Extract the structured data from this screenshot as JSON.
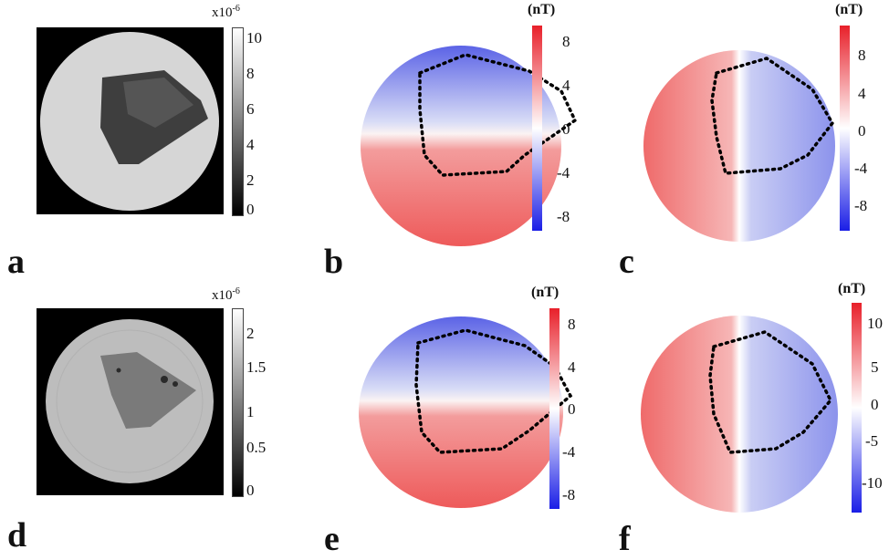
{
  "panels": {
    "a": {
      "letter": "a",
      "type": "grayscale",
      "colorbar_exponent": "x10",
      "colorbar_exponent_power": "-6",
      "colorbar_ticks": [
        "10",
        "8",
        "6",
        "4",
        "2",
        "0"
      ],
      "colormap": "gray"
    },
    "b": {
      "letter": "b",
      "type": "field-map",
      "split": "horizontal",
      "colorbar_unit": "(nT)",
      "colorbar_ticks": [
        "8",
        "4",
        "0",
        "-4",
        "-8"
      ],
      "colormap": "blue-white-red",
      "roi_outline": "dotted"
    },
    "c": {
      "letter": "c",
      "type": "field-map",
      "split": "vertical",
      "colorbar_unit": "(nT)",
      "colorbar_ticks": [
        "8",
        "4",
        "0",
        "-4",
        "-8"
      ],
      "colormap": "blue-white-red",
      "roi_outline": "dotted"
    },
    "d": {
      "letter": "d",
      "type": "grayscale",
      "colorbar_exponent": "x10",
      "colorbar_exponent_power": "-6",
      "colorbar_ticks": [
        "2",
        "1.5",
        "1",
        "0.5",
        "0"
      ],
      "colormap": "gray"
    },
    "e": {
      "letter": "e",
      "type": "field-map",
      "split": "horizontal",
      "colorbar_unit": "(nT)",
      "colorbar_ticks": [
        "8",
        "4",
        "0",
        "-4",
        "-8"
      ],
      "colormap": "blue-white-red",
      "roi_outline": "dotted"
    },
    "f": {
      "letter": "f",
      "type": "field-map",
      "split": "vertical",
      "colorbar_unit": "(nT)",
      "colorbar_ticks": [
        "10",
        "5",
        "0",
        "-5",
        "-10"
      ],
      "colormap": "blue-white-red",
      "roi_outline": "dotted"
    }
  },
  "colors": {
    "red": "#e8333a",
    "blue": "#2f3fe0",
    "white": "#ffffff",
    "black": "#000000"
  }
}
